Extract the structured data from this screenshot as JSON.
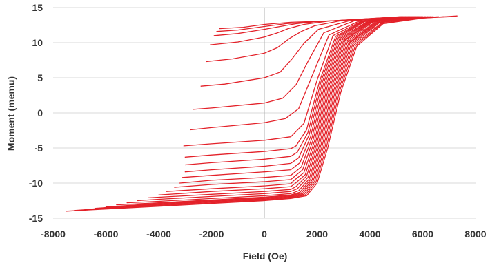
{
  "chart_data": {
    "type": "line",
    "title": "",
    "xlabel": "Field (Oe)",
    "ylabel": "Moment (memu)",
    "xlim": [
      -8000,
      8000
    ],
    "ylim": [
      -15,
      15
    ],
    "x_ticks": [
      "-8000",
      "-6000",
      "-4000",
      "-2000",
      "0",
      "2000",
      "4000",
      "6000",
      "8000"
    ],
    "y_ticks": [
      "-15",
      "-10",
      "-5",
      "0",
      "5",
      "10",
      "15"
    ],
    "grid": "horizontal",
    "legend": "none",
    "series_color": "#e32129",
    "zero_line_color": "#b0b0b0",
    "grid_color": "#d9d9d9",
    "series": [
      {
        "points": [
          [
            -7500,
            -14.0
          ],
          [
            -6000,
            -13.7
          ],
          [
            -4000,
            -13.3
          ],
          [
            -2000,
            -12.9
          ],
          [
            0,
            -12.5
          ],
          [
            1000,
            -12.2
          ],
          [
            1600,
            -11.8
          ],
          [
            2000,
            -10.0
          ],
          [
            2400,
            -5.0
          ],
          [
            2900,
            3.0
          ],
          [
            3500,
            9.5
          ],
          [
            4500,
            12.7
          ],
          [
            6000,
            13.5
          ],
          [
            7300,
            13.8
          ]
        ]
      },
      {
        "points": [
          [
            -7200,
            -13.9
          ],
          [
            -6000,
            -13.6
          ],
          [
            -4000,
            -13.2
          ],
          [
            -2000,
            -12.8
          ],
          [
            0,
            -12.4
          ],
          [
            1000,
            -12.1
          ],
          [
            1550,
            -11.7
          ],
          [
            1950,
            -9.9
          ],
          [
            2350,
            -4.9
          ],
          [
            2850,
            3.1
          ],
          [
            3450,
            9.6
          ],
          [
            4450,
            12.7
          ],
          [
            5900,
            13.5
          ],
          [
            7000,
            13.7
          ]
        ]
      },
      {
        "points": [
          [
            -6800,
            -13.8
          ],
          [
            -6000,
            -13.5
          ],
          [
            -4000,
            -13.1
          ],
          [
            -2000,
            -12.7
          ],
          [
            0,
            -12.3
          ],
          [
            1000,
            -12.0
          ],
          [
            1500,
            -11.6
          ],
          [
            1900,
            -9.8
          ],
          [
            2300,
            -4.8
          ],
          [
            2800,
            3.2
          ],
          [
            3400,
            9.7
          ],
          [
            4400,
            12.7
          ],
          [
            5800,
            13.5
          ],
          [
            6800,
            13.7
          ]
        ]
      },
      {
        "points": [
          [
            -6400,
            -13.6
          ],
          [
            -4000,
            -13.0
          ],
          [
            -2000,
            -12.6
          ],
          [
            0,
            -12.2
          ],
          [
            1000,
            -11.9
          ],
          [
            1450,
            -11.5
          ],
          [
            1850,
            -9.7
          ],
          [
            2250,
            -4.7
          ],
          [
            2750,
            3.3
          ],
          [
            3350,
            9.8
          ],
          [
            4350,
            12.8
          ],
          [
            5700,
            13.5
          ],
          [
            6600,
            13.7
          ]
        ]
      },
      {
        "points": [
          [
            -6000,
            -13.4
          ],
          [
            -4000,
            -12.9
          ],
          [
            -2000,
            -12.5
          ],
          [
            0,
            -12.1
          ],
          [
            1000,
            -11.8
          ],
          [
            1400,
            -11.4
          ],
          [
            1800,
            -9.6
          ],
          [
            2200,
            -4.6
          ],
          [
            2700,
            3.4
          ],
          [
            3300,
            9.9
          ],
          [
            4300,
            12.8
          ],
          [
            5600,
            13.5
          ],
          [
            6400,
            13.7
          ]
        ]
      },
      {
        "points": [
          [
            -5600,
            -13.1
          ],
          [
            -4000,
            -12.8
          ],
          [
            -2000,
            -12.4
          ],
          [
            0,
            -12.0
          ],
          [
            1000,
            -11.7
          ],
          [
            1350,
            -11.3
          ],
          [
            1750,
            -9.5
          ],
          [
            2150,
            -4.5
          ],
          [
            2650,
            3.5
          ],
          [
            3250,
            10.0
          ],
          [
            4250,
            12.8
          ],
          [
            5500,
            13.5
          ],
          [
            6300,
            13.7
          ]
        ]
      },
      {
        "points": [
          [
            -5200,
            -12.8
          ],
          [
            -4000,
            -12.6
          ],
          [
            -2000,
            -12.2
          ],
          [
            0,
            -11.8
          ],
          [
            1000,
            -11.5
          ],
          [
            1300,
            -11.1
          ],
          [
            1700,
            -9.4
          ],
          [
            2100,
            -4.4
          ],
          [
            2600,
            3.6
          ],
          [
            3200,
            10.0
          ],
          [
            4200,
            12.8
          ],
          [
            5400,
            13.5
          ],
          [
            6200,
            13.7
          ]
        ]
      },
      {
        "points": [
          [
            -4800,
            -12.5
          ],
          [
            -4000,
            -12.3
          ],
          [
            -2000,
            -11.9
          ],
          [
            0,
            -11.5
          ],
          [
            1000,
            -11.2
          ],
          [
            1250,
            -10.8
          ],
          [
            1650,
            -9.2
          ],
          [
            2050,
            -4.3
          ],
          [
            2550,
            3.7
          ],
          [
            3150,
            10.1
          ],
          [
            4150,
            12.8
          ],
          [
            5300,
            13.5
          ],
          [
            6100,
            13.7
          ]
        ]
      },
      {
        "points": [
          [
            -4400,
            -12.1
          ],
          [
            -2000,
            -11.6
          ],
          [
            0,
            -11.2
          ],
          [
            1000,
            -10.9
          ],
          [
            1200,
            -10.5
          ],
          [
            1600,
            -9.0
          ],
          [
            2000,
            -4.2
          ],
          [
            2500,
            3.8
          ],
          [
            3100,
            10.2
          ],
          [
            4100,
            12.9
          ],
          [
            5200,
            13.5
          ],
          [
            6000,
            13.7
          ]
        ]
      },
      {
        "points": [
          [
            -4000,
            -11.7
          ],
          [
            -2000,
            -11.2
          ],
          [
            0,
            -10.8
          ],
          [
            1000,
            -10.5
          ],
          [
            1150,
            -10.1
          ],
          [
            1550,
            -8.8
          ],
          [
            1950,
            -4.1
          ],
          [
            2450,
            3.9
          ],
          [
            3050,
            10.3
          ],
          [
            4050,
            12.9
          ],
          [
            5100,
            13.5
          ],
          [
            5950,
            13.7
          ]
        ]
      },
      {
        "points": [
          [
            -3700,
            -11.2
          ],
          [
            -2000,
            -10.8
          ],
          [
            0,
            -10.4
          ],
          [
            1000,
            -10.1
          ],
          [
            1100,
            -9.7
          ],
          [
            1500,
            -8.5
          ],
          [
            1900,
            -4.0
          ],
          [
            2400,
            4.0
          ],
          [
            3000,
            10.3
          ],
          [
            4000,
            12.9
          ],
          [
            5050,
            13.5
          ],
          [
            5900,
            13.7
          ]
        ]
      },
      {
        "points": [
          [
            -3400,
            -10.6
          ],
          [
            -2000,
            -10.2
          ],
          [
            0,
            -9.8
          ],
          [
            1000,
            -9.5
          ],
          [
            1450,
            -8.1
          ],
          [
            1850,
            -3.8
          ],
          [
            2350,
            4.1
          ],
          [
            2950,
            10.4
          ],
          [
            3950,
            12.9
          ],
          [
            5000,
            13.5
          ],
          [
            5850,
            13.7
          ]
        ]
      },
      {
        "points": [
          [
            -3200,
            -10.0
          ],
          [
            -2000,
            -9.6
          ],
          [
            0,
            -9.2
          ],
          [
            1000,
            -8.9
          ],
          [
            1400,
            -7.7
          ],
          [
            1800,
            -3.6
          ],
          [
            2300,
            4.2
          ],
          [
            2900,
            10.5
          ],
          [
            3900,
            12.9
          ],
          [
            4950,
            13.5
          ],
          [
            5800,
            13.7
          ]
        ]
      },
      {
        "points": [
          [
            -3100,
            -9.2
          ],
          [
            -2000,
            -8.9
          ],
          [
            0,
            -8.4
          ],
          [
            1000,
            -8.1
          ],
          [
            1350,
            -7.1
          ],
          [
            1750,
            -3.4
          ],
          [
            2250,
            4.3
          ],
          [
            2850,
            10.6
          ],
          [
            3850,
            12.9
          ],
          [
            4900,
            13.5
          ],
          [
            5750,
            13.7
          ]
        ]
      },
      {
        "points": [
          [
            -3000,
            -8.4
          ],
          [
            -2000,
            -8.1
          ],
          [
            0,
            -7.6
          ],
          [
            1000,
            -7.2
          ],
          [
            1300,
            -6.4
          ],
          [
            1700,
            -3.1
          ],
          [
            2200,
            4.4
          ],
          [
            2800,
            10.7
          ],
          [
            3800,
            13.0
          ],
          [
            4850,
            13.5
          ],
          [
            5700,
            13.7
          ]
        ]
      },
      {
        "points": [
          [
            -3000,
            -7.4
          ],
          [
            -2000,
            -7.1
          ],
          [
            0,
            -6.6
          ],
          [
            1000,
            -6.2
          ],
          [
            1250,
            -5.6
          ],
          [
            1650,
            -2.8
          ],
          [
            2150,
            4.5
          ],
          [
            2750,
            10.8
          ],
          [
            3750,
            13.0
          ],
          [
            4800,
            13.5
          ],
          [
            5650,
            13.7
          ]
        ]
      },
      {
        "points": [
          [
            -3000,
            -6.3
          ],
          [
            -2000,
            -6.0
          ],
          [
            0,
            -5.5
          ],
          [
            1000,
            -5.1
          ],
          [
            1200,
            -4.7
          ],
          [
            1600,
            -2.4
          ],
          [
            2100,
            4.6
          ],
          [
            2700,
            10.9
          ],
          [
            3700,
            13.0
          ],
          [
            4750,
            13.5
          ],
          [
            5600,
            13.7
          ]
        ]
      },
      {
        "points": [
          [
            -3050,
            -4.7
          ],
          [
            -2000,
            -4.4
          ],
          [
            0,
            -3.9
          ],
          [
            1000,
            -3.4
          ],
          [
            1500,
            -1.5
          ],
          [
            2000,
            4.7
          ],
          [
            2600,
            11.0
          ],
          [
            3650,
            13.0
          ],
          [
            4700,
            13.5
          ],
          [
            5550,
            13.7
          ]
        ]
      },
      {
        "points": [
          [
            -2800,
            -2.4
          ],
          [
            -2000,
            -2.1
          ],
          [
            0,
            -1.4
          ],
          [
            800,
            -0.8
          ],
          [
            1300,
            0.6
          ],
          [
            1800,
            5.2
          ],
          [
            2450,
            11.1
          ],
          [
            3550,
            13.0
          ],
          [
            4650,
            13.5
          ],
          [
            5500,
            13.7
          ]
        ]
      },
      {
        "points": [
          [
            -2700,
            0.5
          ],
          [
            -2000,
            0.7
          ],
          [
            0,
            1.4
          ],
          [
            700,
            2.1
          ],
          [
            1200,
            4.0
          ],
          [
            1650,
            7.3
          ],
          [
            2250,
            11.4
          ],
          [
            3400,
            13.1
          ],
          [
            4600,
            13.5
          ],
          [
            5450,
            13.7
          ]
        ]
      },
      {
        "points": [
          [
            -2400,
            3.8
          ],
          [
            -1500,
            4.1
          ],
          [
            0,
            5.0
          ],
          [
            600,
            5.8
          ],
          [
            1050,
            7.7
          ],
          [
            1500,
            9.9
          ],
          [
            2050,
            11.9
          ],
          [
            3200,
            13.1
          ],
          [
            4550,
            13.5
          ],
          [
            5400,
            13.7
          ]
        ]
      },
      {
        "points": [
          [
            -2200,
            7.3
          ],
          [
            -1200,
            7.7
          ],
          [
            0,
            8.5
          ],
          [
            500,
            9.3
          ],
          [
            950,
            10.6
          ],
          [
            1400,
            11.6
          ],
          [
            1900,
            12.4
          ],
          [
            3000,
            13.2
          ],
          [
            4500,
            13.5
          ],
          [
            5350,
            13.7
          ]
        ]
      },
      {
        "points": [
          [
            -2050,
            9.7
          ],
          [
            -1000,
            10.1
          ],
          [
            0,
            10.8
          ],
          [
            500,
            11.4
          ],
          [
            900,
            12.0
          ],
          [
            1500,
            12.6
          ],
          [
            2500,
            13.1
          ],
          [
            4000,
            13.4
          ],
          [
            5300,
            13.7
          ]
        ]
      },
      {
        "points": [
          [
            -1900,
            11.0
          ],
          [
            -1000,
            11.3
          ],
          [
            0,
            11.9
          ],
          [
            600,
            12.3
          ],
          [
            1200,
            12.7
          ],
          [
            2000,
            13.0
          ],
          [
            3500,
            13.3
          ],
          [
            5250,
            13.7
          ]
        ]
      },
      {
        "points": [
          [
            -1800,
            11.6
          ],
          [
            -1000,
            11.8
          ],
          [
            0,
            12.3
          ],
          [
            800,
            12.7
          ],
          [
            1600,
            12.9
          ],
          [
            3000,
            13.2
          ],
          [
            5200,
            13.7
          ]
        ]
      },
      {
        "points": [
          [
            -1700,
            12.0
          ],
          [
            -800,
            12.2
          ],
          [
            0,
            12.6
          ],
          [
            1000,
            12.9
          ],
          [
            2500,
            13.1
          ],
          [
            5150,
            13.7
          ]
        ]
      }
    ]
  }
}
